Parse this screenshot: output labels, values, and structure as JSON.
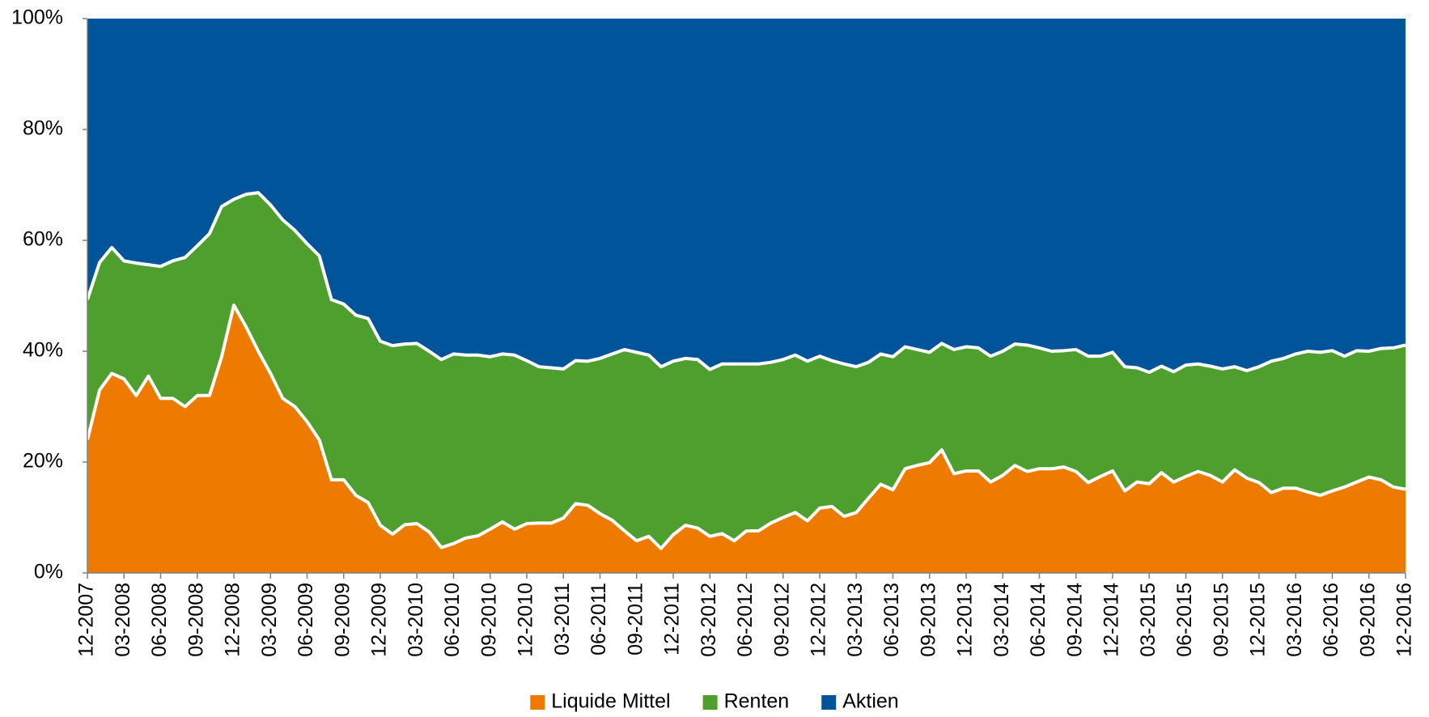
{
  "chart_data": {
    "type": "stacked_area",
    "categories": [
      "12-2007",
      null,
      null,
      "03-2008",
      null,
      null,
      "06-2008",
      null,
      null,
      "09-2008",
      null,
      null,
      "12-2008",
      null,
      null,
      "03-2009",
      null,
      null,
      "06-2009",
      null,
      null,
      "09-2009",
      null,
      null,
      "12-2009",
      null,
      null,
      "03-2010",
      null,
      null,
      "06-2010",
      null,
      null,
      "09-2010",
      null,
      null,
      "12-2010",
      null,
      null,
      "03-2011",
      null,
      null,
      "06-2011",
      null,
      null,
      "09-2011",
      null,
      null,
      "12-2011",
      null,
      null,
      "03-2012",
      null,
      null,
      "06-2012",
      null,
      null,
      "09-2012",
      null,
      null,
      "12-2012",
      null,
      null,
      "03-2013",
      null,
      null,
      "06-2013",
      null,
      null,
      "09-2013",
      null,
      null,
      "12-2013",
      null,
      null,
      "03-2014",
      null,
      null,
      "06-2014",
      null,
      null,
      "09-2014",
      null,
      null,
      "12-2014",
      null,
      null,
      "03-2015",
      null,
      null,
      "06-2015",
      null,
      null,
      "09-2015",
      null,
      null,
      "12-2015",
      null,
      null,
      "03-2016",
      null,
      null,
      "06-2016",
      null,
      null,
      "09-2016",
      null,
      null,
      "12-2016"
    ],
    "series": [
      {
        "name": "Liquide Mittel",
        "color": "#ee7b00",
        "values": [
          24,
          33,
          36,
          35,
          32,
          35.5,
          31.5,
          31.5,
          30,
          32,
          32,
          39,
          48.3,
          44.4,
          40,
          36,
          31.5,
          30,
          27.3,
          24,
          16.8,
          16.8,
          14,
          12.7,
          8.6,
          7,
          8.7,
          8.9,
          7.4,
          4.6,
          5.3,
          6.3,
          6.7,
          7.9,
          9.2,
          7.9,
          8.9,
          9,
          9,
          9.9,
          12.5,
          12.2,
          10.7,
          9.5,
          7.6,
          5.8,
          6.6,
          4.4,
          6.9,
          8.6,
          8.1,
          6.6,
          7.1,
          5.8,
          7.6,
          7.6,
          9,
          10,
          10.9,
          9.4,
          11.7,
          12,
          10.2,
          10.9,
          13.5,
          16,
          15,
          18.8,
          19.4,
          19.9,
          22.2,
          17.9,
          18.4,
          18.4,
          16.4,
          17.6,
          19.4,
          18.3,
          18.8,
          18.8,
          19.1,
          18.3,
          16.3,
          17.4,
          18.4,
          14.8,
          16.4,
          16.1,
          18.1,
          16.4,
          17.4,
          18.3,
          17.6,
          16.4,
          18.6,
          17.1,
          16.3,
          14.5,
          15.3,
          15.3,
          14.6,
          14,
          14.8,
          15.5,
          16.4,
          17.3,
          16.8,
          15.5,
          15.1
        ]
      },
      {
        "name": "Renten",
        "color": "#4f9f2f",
        "values": [
          25.3,
          23,
          22.7,
          21.3,
          23.9,
          20.1,
          23.8,
          24.8,
          26.9,
          27,
          29.2,
          27.1,
          19.1,
          23.9,
          28.6,
          30.4,
          32.2,
          31.8,
          32.1,
          33.2,
          32.5,
          31.7,
          32.5,
          33.2,
          33.2,
          34,
          32.6,
          32.5,
          32.6,
          33.9,
          34.2,
          33,
          32.6,
          31.1,
          30.3,
          31.4,
          29.4,
          28.2,
          28,
          26.9,
          25.8,
          26,
          28,
          30,
          32.7,
          34,
          32.7,
          32.8,
          31.3,
          30.1,
          30.4,
          30.1,
          30.6,
          31.9,
          30.1,
          30.1,
          29,
          28.5,
          28.4,
          28.8,
          27.4,
          26.3,
          27.5,
          26.3,
          24.5,
          23.5,
          24,
          22,
          20.9,
          19.9,
          19.2,
          22.4,
          22.4,
          22.2,
          22.7,
          22.4,
          21.9,
          22.8,
          21.8,
          21.2,
          21,
          22,
          22.8,
          21.7,
          21.4,
          22.4,
          20.6,
          20.1,
          19.2,
          19.9,
          20.1,
          19.4,
          19.7,
          20.4,
          18.6,
          19.4,
          20.9,
          23.7,
          23.4,
          24.2,
          25.4,
          25.8,
          25.3,
          23.6,
          23.7,
          22.7,
          23.7,
          25.1,
          26
        ]
      },
      {
        "name": "Aktien",
        "color": "#00549a",
        "values": [
          50.7,
          44,
          41.3,
          43.7,
          44.1,
          44.4,
          44.7,
          43.7,
          43.1,
          41,
          38.8,
          33.9,
          32.6,
          31.7,
          31.4,
          33.6,
          36.3,
          38.2,
          40.6,
          42.8,
          50.7,
          51.5,
          53.5,
          54.1,
          58.2,
          59,
          58.7,
          58.6,
          60,
          61.5,
          60.5,
          60.7,
          60.7,
          61,
          60.5,
          60.7,
          61.7,
          62.8,
          63,
          63.2,
          61.7,
          61.8,
          61.3,
          60.5,
          59.7,
          60.2,
          60.7,
          62.8,
          61.8,
          61.3,
          61.5,
          63.3,
          62.3,
          62.3,
          62.3,
          62.3,
          62,
          61.5,
          60.7,
          61.8,
          60.9,
          61.7,
          62.3,
          62.8,
          62,
          60.5,
          61,
          59.2,
          59.7,
          60.2,
          58.6,
          59.7,
          59.2,
          59.4,
          60.9,
          60,
          58.7,
          58.9,
          59.4,
          60,
          59.9,
          59.7,
          60.9,
          60.9,
          60.2,
          62.8,
          63,
          63.8,
          62.7,
          63.7,
          62.5,
          62.3,
          62.7,
          63.2,
          62.8,
          63.5,
          62.8,
          61.8,
          61.3,
          60.5,
          60,
          60.2,
          59.9,
          60.9,
          59.9,
          60,
          59.5,
          59.4,
          58.9
        ]
      }
    ],
    "ylim": [
      0,
      100
    ],
    "yticks": [
      {
        "value": 0,
        "label": "0%"
      },
      {
        "value": 20,
        "label": "20%"
      },
      {
        "value": 40,
        "label": "40%"
      },
      {
        "value": 60,
        "label": "60%"
      },
      {
        "value": 80,
        "label": "80%"
      },
      {
        "value": 100,
        "label": "100%"
      }
    ],
    "legend": "bottom"
  }
}
